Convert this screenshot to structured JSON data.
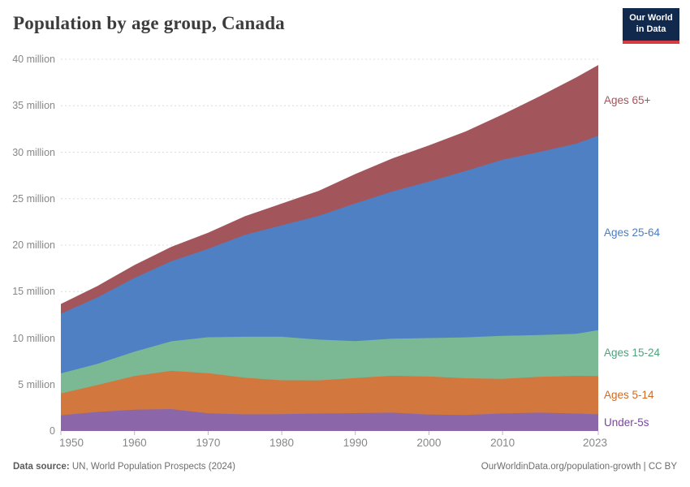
{
  "header": {
    "title": "Population by age group, Canada"
  },
  "logo": {
    "line1": "Our World",
    "line2": "in Data",
    "bg_color": "#12294e",
    "accent_color": "#d63d43"
  },
  "footer": {
    "source_label": "Data source:",
    "source_text": " UN, World Population Prospects (2024)",
    "link_text": "OurWorldinData.org/population-growth | CC BY"
  },
  "chart_data": {
    "type": "area",
    "stacked": true,
    "title": "Population by age group, Canada",
    "unit": "people (millions)",
    "x": [
      1950,
      1955,
      1960,
      1965,
      1970,
      1975,
      1980,
      1985,
      1990,
      1995,
      2000,
      2005,
      2010,
      2015,
      2020,
      2023
    ],
    "x_range": [
      1950,
      2023
    ],
    "ylim": [
      0,
      40
    ],
    "y_ticks": [
      0,
      5,
      10,
      15,
      20,
      25,
      30,
      35,
      40
    ],
    "y_tick_labels": [
      "0",
      "5 million",
      "10 million",
      "15 million",
      "20 million",
      "25 million",
      "30 million",
      "35 million",
      "40 million"
    ],
    "x_ticks": [
      1950,
      1960,
      1970,
      1980,
      1990,
      2000,
      2010,
      2023
    ],
    "grid": "horizontal-dashed",
    "gridline_color": "#dcdcdc",
    "tick_color": "#b8b8b8",
    "axis_text_color": "#878787",
    "legend_position": "right",
    "series": [
      {
        "name": "Under-5s",
        "color": "#8b67a9",
        "label_color": "#7a44a0",
        "values": [
          1.69,
          2.05,
          2.3,
          2.36,
          1.9,
          1.79,
          1.82,
          1.88,
          1.92,
          1.97,
          1.76,
          1.72,
          1.89,
          1.97,
          1.88,
          1.79
        ]
      },
      {
        "name": "Ages 5-14",
        "color": "#d2773d",
        "label_color": "#d2691f",
        "values": [
          2.35,
          2.9,
          3.62,
          4.11,
          4.32,
          3.94,
          3.64,
          3.57,
          3.77,
          3.98,
          4.1,
          3.96,
          3.73,
          3.86,
          4.06,
          4.13
        ]
      },
      {
        "name": "Ages 15-24",
        "color": "#7ab994",
        "label_color": "#4fa27c",
        "values": [
          2.16,
          2.28,
          2.62,
          3.18,
          3.87,
          4.41,
          4.68,
          4.38,
          3.98,
          3.98,
          4.14,
          4.4,
          4.62,
          4.49,
          4.51,
          4.94
        ]
      },
      {
        "name": "Ages 25-64",
        "color": "#4f80c3",
        "label_color": "#4d7dbf",
        "values": [
          6.41,
          7.15,
          7.93,
          8.61,
          9.51,
          10.96,
          11.99,
          13.31,
          14.82,
          15.83,
          16.83,
          17.9,
          18.95,
          19.71,
          20.47,
          20.9
        ]
      },
      {
        "name": "Ages 65+",
        "color": "#a2565c",
        "label_color": "#a3555b",
        "values": [
          1.06,
          1.24,
          1.39,
          1.56,
          1.74,
          2.01,
          2.34,
          2.69,
          3.16,
          3.57,
          3.9,
          4.26,
          4.87,
          5.97,
          7.12,
          7.62
        ]
      }
    ]
  }
}
